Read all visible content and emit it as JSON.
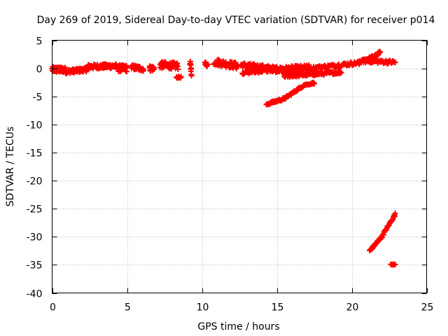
{
  "chart_data": {
    "type": "scatter",
    "title": "Day 269 of 2019, Sidereal Day-to-day VTEC variation (SDTVAR) for receiver p014",
    "xlabel": "GPS time / hours",
    "ylabel": "SDTVAR / TECUs",
    "xlim": [
      0,
      25
    ],
    "ylim": [
      -40,
      5
    ],
    "xticks": [
      0,
      5,
      10,
      15,
      20,
      25
    ],
    "yticks": [
      -40,
      -35,
      -30,
      -25,
      -20,
      -15,
      -10,
      -5,
      0,
      5
    ],
    "grid": true,
    "marker": "+",
    "color": "#ff0000",
    "series": [
      {
        "name": "SDTVAR",
        "segments": [
          {
            "x0": 0.0,
            "x1": 0.9,
            "y0": -0.2,
            "y1": -0.3,
            "spread": 1.0,
            "n": 60
          },
          {
            "x0": 0.9,
            "x1": 2.4,
            "y0": -0.6,
            "y1": -0.2,
            "spread": 0.7,
            "n": 70
          },
          {
            "x0": 2.4,
            "x1": 4.3,
            "y0": 0.3,
            "y1": 0.4,
            "spread": 0.8,
            "n": 80
          },
          {
            "x0": 4.4,
            "x1": 5.0,
            "y0": 0.0,
            "y1": 0.0,
            "spread": 1.2,
            "n": 30
          },
          {
            "x0": 5.3,
            "x1": 6.1,
            "y0": 0.2,
            "y1": -0.1,
            "spread": 0.9,
            "n": 30
          },
          {
            "x0": 6.5,
            "x1": 6.8,
            "y0": 0.0,
            "y1": 0.0,
            "spread": 1.0,
            "n": 15
          },
          {
            "x0": 7.2,
            "x1": 8.4,
            "y0": 0.6,
            "y1": 0.4,
            "spread": 1.2,
            "n": 50
          },
          {
            "x0": 8.3,
            "x1": 8.6,
            "y0": -1.6,
            "y1": -1.6,
            "spread": 0.3,
            "n": 8
          },
          {
            "x0": 9.2,
            "x1": 9.3,
            "y0": 0.8,
            "y1": -0.6,
            "spread": 1.5,
            "n": 10
          },
          {
            "x0": 10.2,
            "x1": 10.4,
            "y0": 0.8,
            "y1": 0.6,
            "spread": 0.8,
            "n": 10
          },
          {
            "x0": 10.8,
            "x1": 12.4,
            "y0": 1.2,
            "y1": 0.4,
            "spread": 1.2,
            "n": 50
          },
          {
            "x0": 12.6,
            "x1": 15.5,
            "y0": 0.6,
            "y1": -0.3,
            "spread": 0.9,
            "n": 90
          },
          {
            "x0": 12.7,
            "x1": 14.6,
            "y0": -0.8,
            "y1": -0.3,
            "spread": 0.6,
            "n": 40
          },
          {
            "x0": 14.6,
            "x1": 17.2,
            "y0": -0.3,
            "y1": 0.1,
            "spread": 1.0,
            "n": 80
          },
          {
            "x0": 15.5,
            "x1": 19.3,
            "y0": -1.4,
            "y1": -0.7,
            "spread": 0.5,
            "n": 90
          },
          {
            "x0": 16.0,
            "x1": 20.5,
            "y0": -0.4,
            "y1": 1.0,
            "spread": 0.6,
            "n": 100
          },
          {
            "x0": 14.3,
            "x1": 15.5,
            "y0": -6.4,
            "y1": -5.4,
            "spread": 0.4,
            "n": 30
          },
          {
            "x0": 15.5,
            "x1": 16.8,
            "y0": -5.4,
            "y1": -3.0,
            "spread": 0.4,
            "n": 35
          },
          {
            "x0": 16.8,
            "x1": 17.5,
            "y0": -3.0,
            "y1": -2.6,
            "spread": 0.3,
            "n": 15
          },
          {
            "x0": 20.5,
            "x1": 21.6,
            "y0": 1.0,
            "y1": 2.2,
            "spread": 0.6,
            "n": 35
          },
          {
            "x0": 21.6,
            "x1": 21.9,
            "y0": 2.4,
            "y1": 2.8,
            "spread": 0.5,
            "n": 10
          },
          {
            "x0": 20.8,
            "x1": 22.9,
            "y0": 1.3,
            "y1": 1.1,
            "spread": 0.6,
            "n": 50
          },
          {
            "x0": 21.2,
            "x1": 22.0,
            "y0": -32.5,
            "y1": -30.0,
            "spread": 0.4,
            "n": 30
          },
          {
            "x0": 22.0,
            "x1": 22.9,
            "y0": -30.0,
            "y1": -26.0,
            "spread": 0.4,
            "n": 30
          },
          {
            "x0": 22.6,
            "x1": 22.9,
            "y0": -34.9,
            "y1": -34.9,
            "spread": 0.2,
            "n": 6
          }
        ]
      }
    ]
  }
}
